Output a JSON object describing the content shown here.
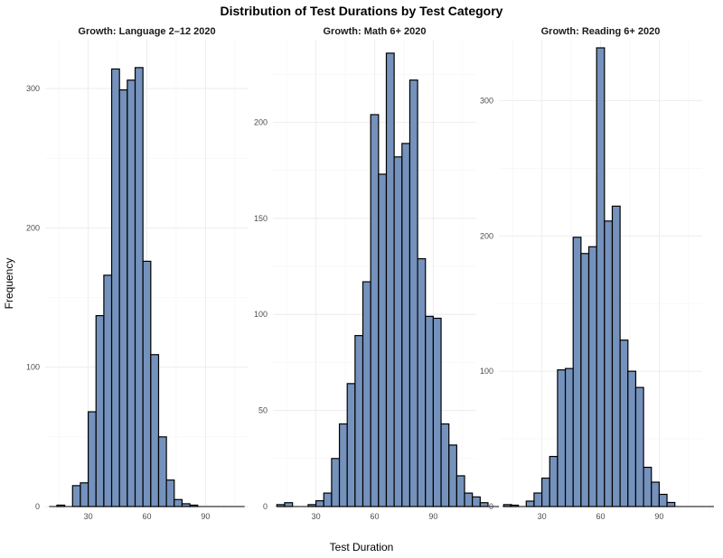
{
  "chart_data": {
    "type": "bar",
    "title": "Distribution of Test Durations by Test Category",
    "xlabel": "Test Duration",
    "ylabel": "Frequency",
    "bar_color": "#7592bd",
    "bar_outline": "#000000",
    "grid": true,
    "bin_width": 4,
    "bin_start": 10,
    "xlim": [
      8,
      112
    ],
    "x_ticks": [
      30,
      60,
      90
    ],
    "panels": [
      {
        "title": "Growth: Language 2–12 2020",
        "ylim": [
          0,
          335
        ],
        "y_ticks": [
          0,
          100,
          200,
          300
        ],
        "values": [
          0,
          1,
          0,
          15,
          17,
          68,
          137,
          166,
          314,
          299,
          306,
          315,
          176,
          109,
          50,
          19,
          5,
          2,
          1,
          0,
          0,
          0,
          0,
          0,
          0
        ]
      },
      {
        "title": "Growth: Math 6+ 2020",
        "ylim": [
          0,
          243
        ],
        "y_ticks": [
          0,
          50,
          100,
          150,
          200
        ],
        "values": [
          1,
          2,
          0,
          0,
          1,
          3,
          7,
          25,
          43,
          64,
          89,
          117,
          204,
          173,
          236,
          182,
          189,
          222,
          129,
          99,
          98,
          43,
          32,
          16,
          7,
          5,
          2,
          0,
          0,
          1
        ]
      },
      {
        "title": "Growth: Reading 6+ 2020",
        "ylim": [
          0,
          345
        ],
        "y_ticks": [
          0,
          100,
          200,
          300
        ],
        "values": [
          0,
          1,
          0,
          4,
          10,
          21,
          37,
          101,
          102,
          199,
          187,
          192,
          339,
          211,
          222,
          123,
          100,
          88,
          29,
          18,
          9,
          3,
          0,
          0,
          0,
          0,
          0
        ]
      }
    ]
  }
}
